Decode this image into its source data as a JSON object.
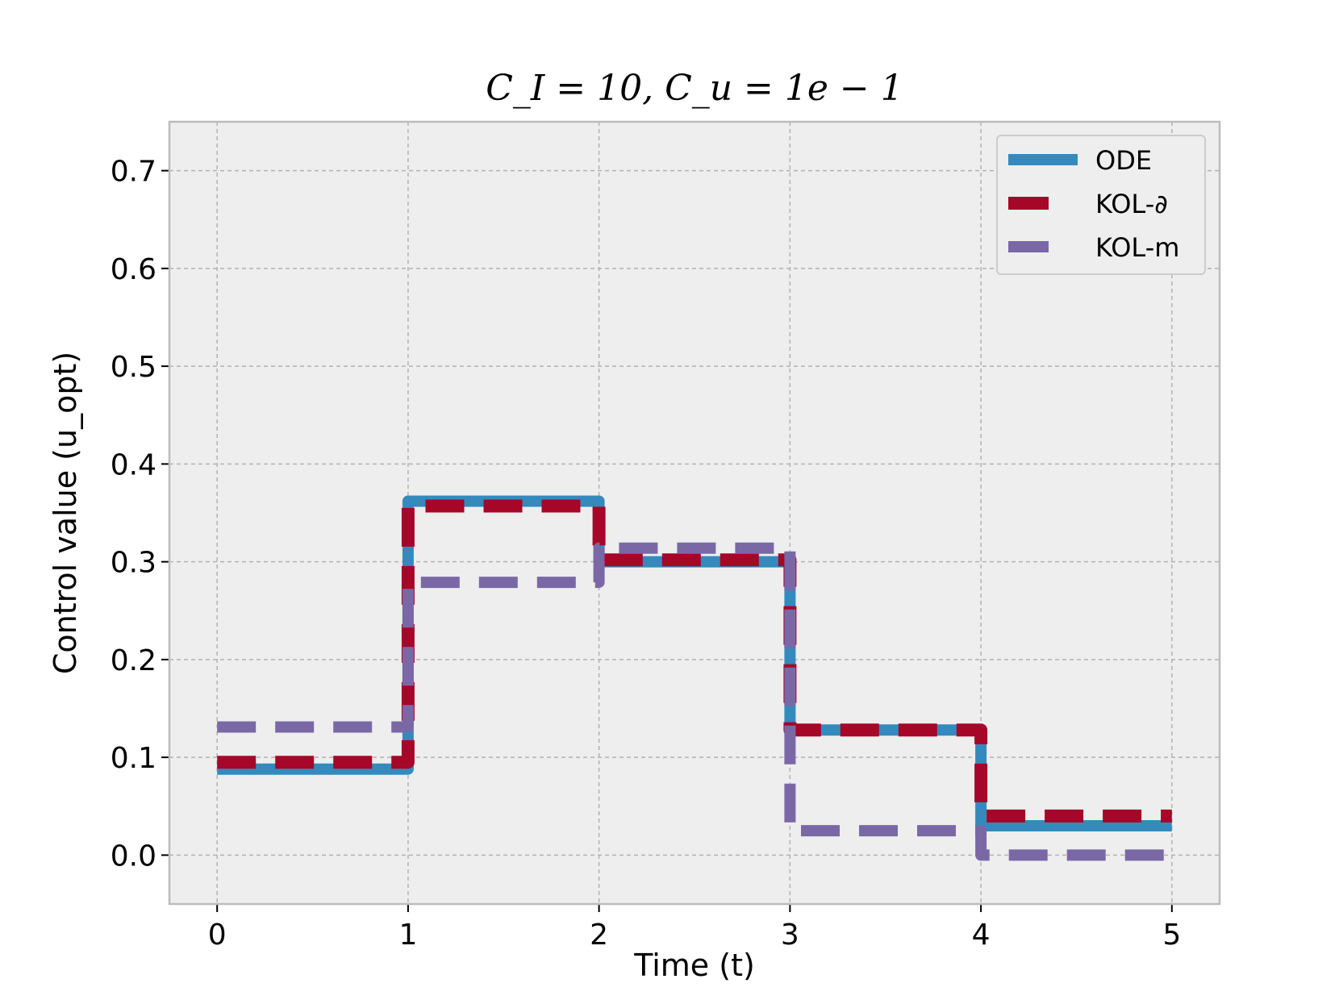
{
  "chart_data": {
    "type": "line",
    "title": "C_I = 10,  C_u = 1e − 1",
    "xlabel": "Time (t)",
    "ylabel": "Control value (u_opt)",
    "xlim": [
      -0.25,
      5.25
    ],
    "ylim": [
      -0.05,
      0.75
    ],
    "xticks": [
      0,
      1,
      2,
      3,
      4,
      5
    ],
    "yticks": [
      0.0,
      0.1,
      0.2,
      0.3,
      0.4,
      0.5,
      0.6,
      0.7
    ],
    "xtick_labels": [
      "0",
      "1",
      "2",
      "3",
      "4",
      "5"
    ],
    "ytick_labels": [
      "0.0",
      "0.1",
      "0.2",
      "0.3",
      "0.4",
      "0.5",
      "0.6",
      "0.7"
    ],
    "grid": true,
    "legend_position": "top-right",
    "series": [
      {
        "name": "ODE",
        "color": "#348abd",
        "style": "solid",
        "points": [
          [
            0,
            0.088
          ],
          [
            1,
            0.088
          ],
          [
            1,
            0.362
          ],
          [
            2,
            0.362
          ],
          [
            2,
            0.3
          ],
          [
            3,
            0.3
          ],
          [
            3,
            0.128
          ],
          [
            4,
            0.128
          ],
          [
            4,
            0.03
          ],
          [
            5,
            0.03
          ]
        ]
      },
      {
        "name": "KOL-∂",
        "color": "#a60628",
        "style": "dashed",
        "points": [
          [
            0,
            0.095
          ],
          [
            1,
            0.095
          ],
          [
            1,
            0.357
          ],
          [
            2,
            0.357
          ],
          [
            2,
            0.302
          ],
          [
            3,
            0.302
          ],
          [
            3,
            0.128
          ],
          [
            4,
            0.128
          ],
          [
            4,
            0.04
          ],
          [
            5,
            0.04
          ]
        ]
      },
      {
        "name": "KOL-m",
        "color": "#7a68a6",
        "style": "dashed",
        "points": [
          [
            0,
            0.131
          ],
          [
            1,
            0.131
          ],
          [
            1,
            0.279
          ],
          [
            2,
            0.279
          ],
          [
            2,
            0.314
          ],
          [
            3,
            0.314
          ],
          [
            3,
            0.025
          ],
          [
            4,
            0.025
          ],
          [
            4,
            0.0
          ],
          [
            5,
            0.0
          ]
        ]
      }
    ]
  }
}
